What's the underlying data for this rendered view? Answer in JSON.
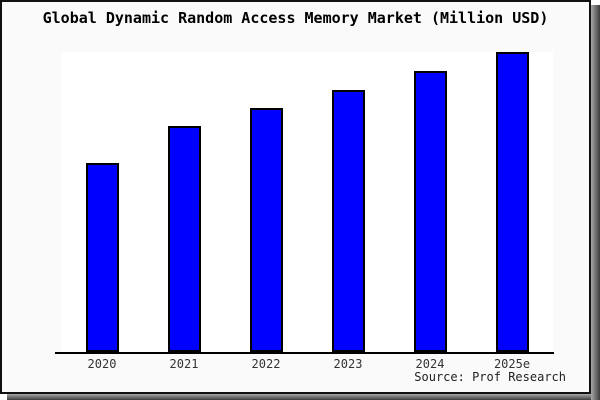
{
  "title": "Global Dynamic Random Access Memory Market (Million USD)",
  "source": "Source: Prof Research",
  "colors": {
    "bar_fill": "#0000ff",
    "bar_border": "#000000",
    "chart_background": "#fafafa",
    "plot_background": "#ffffff",
    "axis": "#000000",
    "frame_border": "#111111",
    "shadow": "#3d3d3d",
    "tick_label_text": "#333333",
    "title_text": "#000000"
  },
  "chart_data": {
    "type": "bar",
    "title": "Global Dynamic Random Access Memory Market (Million USD)",
    "categories": [
      "2020",
      "2021",
      "2022",
      "2023",
      "2024",
      "2025e"
    ],
    "values": [
      189,
      226,
      244,
      262,
      281,
      300
    ],
    "values_note": "no y-axis shown; values are relative bar heights in pixels",
    "xlabel": "",
    "ylabel": "",
    "ylim": [
      0,
      310
    ],
    "grid": false,
    "legend": false,
    "y_axis_ticks": false,
    "annotations": [
      "Source: Prof Research"
    ]
  }
}
